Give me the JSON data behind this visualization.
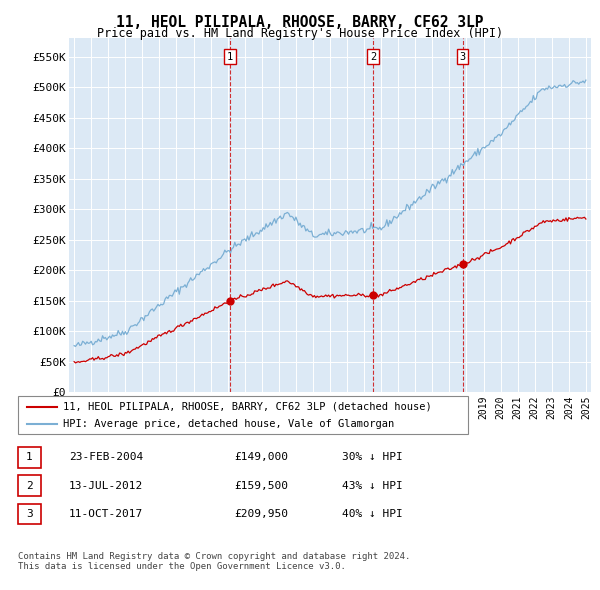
{
  "title": "11, HEOL PILIPALA, RHOOSE, BARRY, CF62 3LP",
  "subtitle": "Price paid vs. HM Land Registry's House Price Index (HPI)",
  "ylabel_ticks": [
    "£0",
    "£50K",
    "£100K",
    "£150K",
    "£200K",
    "£250K",
    "£300K",
    "£350K",
    "£400K",
    "£450K",
    "£500K",
    "£550K"
  ],
  "ytick_values": [
    0,
    50000,
    100000,
    150000,
    200000,
    250000,
    300000,
    350000,
    400000,
    450000,
    500000,
    550000
  ],
  "ylim": [
    0,
    580000
  ],
  "background_color": "#dce9f5",
  "plot_bg_color": "#dce9f5",
  "sale_color": "#cc0000",
  "hpi_color": "#7bafd4",
  "sale_label": "11, HEOL PILIPALA, RHOOSE, BARRY, CF62 3LP (detached house)",
  "hpi_label": "HPI: Average price, detached house, Vale of Glamorgan",
  "markers": [
    {
      "label": "1",
      "x": 2004.14,
      "price": 149000
    },
    {
      "label": "2",
      "x": 2012.53,
      "price": 159500
    },
    {
      "label": "3",
      "x": 2017.78,
      "price": 209950
    }
  ],
  "table_rows": [
    {
      "num": "1",
      "date": "23-FEB-2004",
      "price": "£149,000",
      "hpi": "30% ↓ HPI"
    },
    {
      "num": "2",
      "date": "13-JUL-2012",
      "price": "£159,500",
      "hpi": "43% ↓ HPI"
    },
    {
      "num": "3",
      "date": "11-OCT-2017",
      "price": "£209,950",
      "hpi": "40% ↓ HPI"
    }
  ],
  "footer": "Contains HM Land Registry data © Crown copyright and database right 2024.\nThis data is licensed under the Open Government Licence v3.0.",
  "xmin": 1995,
  "xmax": 2025
}
